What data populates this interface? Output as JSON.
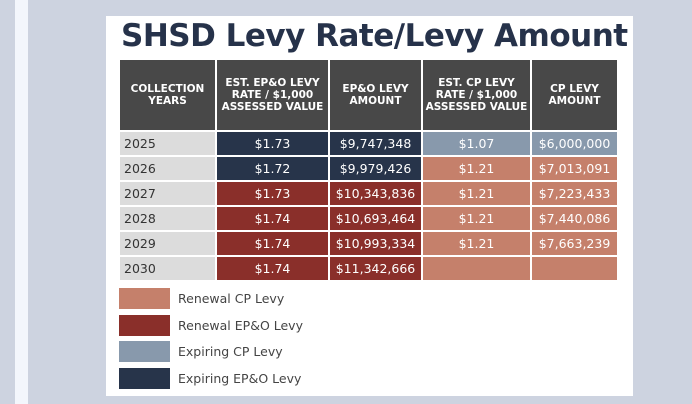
{
  "title": "SHSD Levy Rate/Levy Amount",
  "colors": {
    "expiring_epo": "#27344a",
    "renewal_epo": "#8a2f2a",
    "expiring_cp": "#8899ac",
    "renewal_cp": "#c5806b",
    "header": "#484848"
  },
  "table": {
    "headers": [
      "COLLECTION YEARS",
      "EST. EP&O LEVY RATE / $1,000 ASSESSED VALUE",
      "EP&O LEVY AMOUNT",
      "EST. CP LEVY RATE / $1,000 ASSESSED VALUE",
      "CP LEVY AMOUNT"
    ],
    "rows": [
      {
        "year": "2025",
        "epo_rate": "$1.73",
        "epo_amount": "$9,747,348",
        "cp_rate": "$1.07",
        "cp_amount": "$6,000,000",
        "epo_type": "exp-epo",
        "cp_type": "exp-cp"
      },
      {
        "year": "2026",
        "epo_rate": "$1.72",
        "epo_amount": "$9,979,426",
        "cp_rate": "$1.21",
        "cp_amount": "$7,013,091",
        "epo_type": "exp-epo",
        "cp_type": "ren-cp"
      },
      {
        "year": "2027",
        "epo_rate": "$1.73",
        "epo_amount": "$10,343,836",
        "cp_rate": "$1.21",
        "cp_amount": "$7,223,433",
        "epo_type": "ren-epo",
        "cp_type": "ren-cp"
      },
      {
        "year": "2028",
        "epo_rate": "$1.74",
        "epo_amount": "$10,693,464",
        "cp_rate": "$1.21",
        "cp_amount": "$7,440,086",
        "epo_type": "ren-epo",
        "cp_type": "ren-cp"
      },
      {
        "year": "2029",
        "epo_rate": "$1.74",
        "epo_amount": "$10,993,334",
        "cp_rate": "$1.21",
        "cp_amount": "$7,663,239",
        "epo_type": "ren-epo",
        "cp_type": "ren-cp"
      },
      {
        "year": "2030",
        "epo_rate": "$1.74",
        "epo_amount": "$11,342,666",
        "cp_rate": "",
        "cp_amount": "",
        "epo_type": "ren-epo",
        "cp_type": "empty"
      }
    ]
  },
  "legend": [
    {
      "label": "Renewal CP Levy",
      "type": "ren-cp"
    },
    {
      "label": "Renewal EP&O Levy",
      "type": "ren-epo"
    },
    {
      "label": "Expiring CP Levy",
      "type": "exp-cp"
    },
    {
      "label": "Expiring EP&O Levy",
      "type": "exp-epo"
    }
  ]
}
